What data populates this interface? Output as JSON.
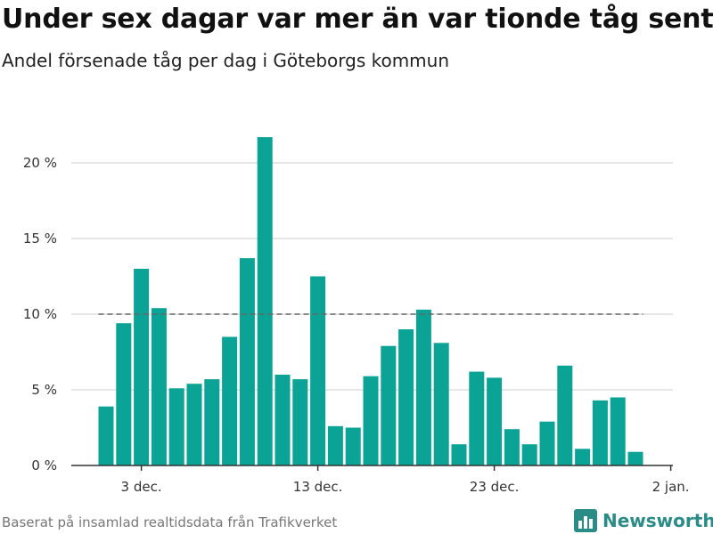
{
  "title": "Under sex dagar var mer än var tionde tåg sent",
  "subtitle": "Andel försenade tåg per dag i Göteborgs kommun",
  "source": "Baserat på insamlad realtidsdata från Trafikverket",
  "brand": {
    "name": "Newsworthy",
    "icon": "bar-chart-logo-icon"
  },
  "colors": {
    "bar": "#0aa396",
    "reference_line": "#666666",
    "grid": "#dddddd",
    "axis": "#333333",
    "brand": "#2a8c86"
  },
  "chart_data": {
    "type": "bar",
    "x": [
      "2023-12-01",
      "2023-12-02",
      "2023-12-03",
      "2023-12-04",
      "2023-12-05",
      "2023-12-06",
      "2023-12-07",
      "2023-12-08",
      "2023-12-09",
      "2023-12-10",
      "2023-12-11",
      "2023-12-12",
      "2023-12-13",
      "2023-12-14",
      "2023-12-15",
      "2023-12-16",
      "2023-12-17",
      "2023-12-18",
      "2023-12-19",
      "2023-12-20",
      "2023-12-21",
      "2023-12-22",
      "2023-12-23",
      "2023-12-24",
      "2023-12-25",
      "2023-12-26",
      "2023-12-27",
      "2023-12-28",
      "2023-12-29",
      "2023-12-30",
      "2023-12-31"
    ],
    "values": [
      3.9,
      9.4,
      13.0,
      10.4,
      5.1,
      5.4,
      5.7,
      8.5,
      13.7,
      21.7,
      6.0,
      5.7,
      12.5,
      2.6,
      2.5,
      5.9,
      7.9,
      9.0,
      10.3,
      8.1,
      1.4,
      6.2,
      5.8,
      2.4,
      1.4,
      2.9,
      6.6,
      1.1,
      4.3,
      4.5,
      0.9
    ],
    "ylim": [
      0,
      22
    ],
    "y_ticks": [
      0,
      5,
      10,
      15,
      20
    ],
    "y_tick_labels": [
      "0 %",
      "5 %",
      "10 %",
      "15 %",
      "20 %"
    ],
    "x_ticks": [
      "2023-12-03",
      "2023-12-13",
      "2023-12-23",
      "2024-01-02"
    ],
    "x_tick_labels": [
      "3 dec.",
      "13 dec.",
      "23 dec.",
      "2 jan."
    ],
    "reference_line": 10,
    "grid": true
  }
}
